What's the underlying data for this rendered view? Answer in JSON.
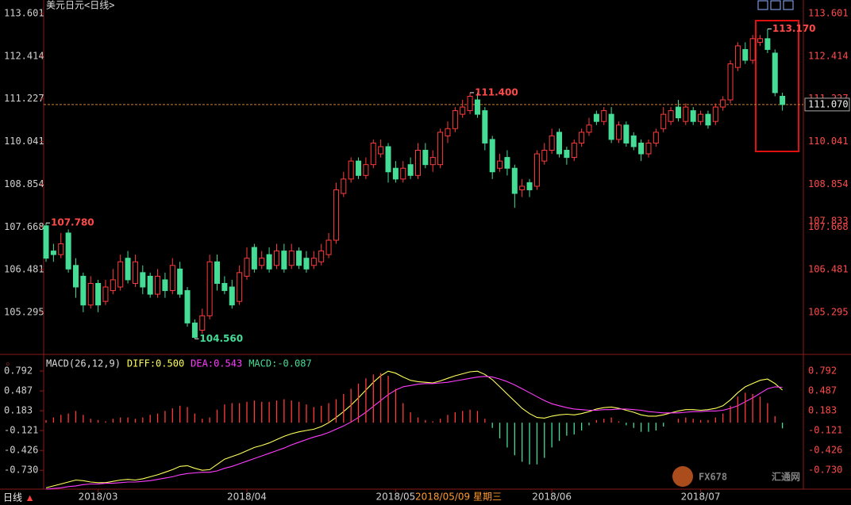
{
  "chart_data": {
    "type": "candlestick",
    "title": "美元日元<日线>",
    "price": {
      "ylim": [
        104.282,
        113.865
      ],
      "yticks": [
        113.601,
        112.414,
        111.227,
        110.041,
        108.854,
        107.668,
        106.481,
        105.295
      ],
      "extra_label": 107.833,
      "last_price": {
        "value": 111.07,
        "label": "111.070"
      },
      "up_color": "#ff3b3b",
      "down_color": "#45dc96",
      "open": [
        107.7,
        107.0,
        106.9,
        107.5,
        106.6,
        106.3,
        105.5,
        106.1,
        105.6,
        105.9,
        106.0,
        106.8,
        106.1,
        106.4,
        106.3,
        105.8,
        106.2,
        105.9,
        106.5,
        105.9,
        105.0,
        104.8,
        105.2,
        106.7,
        106.1,
        106.0,
        105.6,
        106.3,
        107.1,
        106.6,
        106.9,
        106.6,
        107.0,
        106.6,
        107.0,
        106.8,
        106.6,
        106.7,
        106.9,
        107.3,
        108.6,
        109.0,
        109.5,
        109.1,
        109.4,
        109.7,
        109.9,
        109.3,
        109.0,
        109.4,
        109.1,
        109.8,
        109.4,
        109.4,
        110.2,
        110.4,
        110.8,
        110.9,
        111.2,
        110.9,
        110.1,
        109.3,
        109.6,
        109.3,
        108.7,
        108.9,
        108.8,
        109.5,
        109.8,
        110.3,
        109.8,
        109.6,
        110.0,
        110.3,
        110.8,
        110.6,
        110.8,
        110.1,
        110.5,
        110.2,
        110.0,
        109.7,
        110.0,
        110.4,
        110.6,
        111.0,
        110.6,
        110.9,
        110.6,
        110.8,
        110.6,
        111.0,
        111.2,
        112.1,
        112.6,
        112.3,
        112.8,
        112.9,
        112.5,
        111.3
      ],
      "high": [
        107.78,
        107.2,
        107.5,
        107.6,
        106.8,
        106.4,
        106.3,
        106.2,
        106.2,
        106.5,
        106.9,
        107.0,
        106.9,
        106.6,
        106.4,
        106.5,
        106.4,
        106.8,
        106.7,
        106.0,
        105.1,
        105.4,
        106.9,
        106.9,
        106.3,
        106.2,
        106.6,
        107.1,
        107.2,
        107.0,
        107.1,
        107.2,
        107.2,
        107.2,
        107.1,
        107.0,
        107.0,
        107.2,
        107.5,
        108.9,
        109.2,
        109.6,
        109.6,
        109.6,
        110.1,
        110.1,
        110.0,
        109.5,
        109.5,
        109.6,
        110.0,
        110.0,
        109.8,
        110.4,
        110.6,
        111.0,
        111.2,
        111.4,
        111.4,
        111.0,
        110.2,
        109.7,
        109.8,
        109.4,
        109.0,
        109.0,
        109.8,
        110.0,
        110.4,
        110.4,
        109.9,
        110.1,
        110.4,
        110.7,
        110.9,
        111.0,
        111.0,
        110.6,
        110.6,
        110.3,
        110.1,
        110.1,
        110.4,
        111.0,
        111.0,
        111.2,
        111.1,
        111.0,
        110.9,
        110.9,
        111.1,
        111.3,
        112.3,
        112.8,
        112.8,
        113.0,
        113.0,
        113.17,
        112.6,
        111.4
      ],
      "low": [
        106.7,
        106.7,
        106.8,
        106.4,
        105.7,
        105.3,
        105.4,
        105.3,
        105.5,
        105.8,
        105.9,
        106.1,
        106.0,
        105.8,
        105.7,
        105.7,
        105.7,
        105.8,
        105.7,
        104.9,
        104.56,
        104.7,
        105.1,
        105.9,
        105.8,
        105.4,
        105.5,
        106.2,
        106.4,
        106.5,
        106.4,
        106.5,
        106.4,
        106.5,
        106.5,
        106.4,
        106.5,
        106.6,
        106.8,
        107.2,
        108.5,
        108.9,
        109.0,
        109.0,
        109.3,
        109.6,
        108.9,
        108.9,
        108.9,
        109.0,
        109.0,
        109.3,
        109.2,
        109.3,
        110.0,
        110.3,
        110.7,
        110.8,
        110.7,
        109.8,
        109.0,
        109.2,
        109.1,
        108.2,
        108.5,
        108.5,
        108.7,
        109.4,
        109.7,
        109.6,
        109.4,
        109.5,
        109.9,
        110.2,
        110.5,
        110.5,
        110.0,
        110.0,
        109.9,
        109.8,
        109.5,
        109.6,
        109.9,
        110.3,
        110.5,
        110.6,
        110.5,
        110.5,
        110.5,
        110.4,
        110.5,
        110.9,
        111.1,
        112.0,
        112.2,
        112.2,
        112.7,
        112.5,
        111.3,
        110.9
      ],
      "close": [
        106.8,
        106.9,
        107.2,
        106.5,
        106.0,
        105.5,
        106.1,
        105.5,
        106.0,
        106.2,
        106.7,
        106.2,
        106.7,
        106.0,
        105.8,
        106.3,
        105.9,
        106.6,
        105.8,
        105.0,
        104.6,
        105.2,
        106.7,
        106.1,
        105.9,
        105.5,
        106.4,
        106.8,
        106.5,
        106.8,
        106.5,
        107.0,
        106.5,
        107.0,
        106.6,
        106.5,
        106.8,
        107.0,
        107.3,
        108.7,
        109.0,
        109.5,
        109.1,
        109.4,
        110.0,
        109.9,
        109.2,
        109.0,
        109.3,
        109.1,
        109.8,
        109.4,
        109.6,
        110.3,
        110.4,
        110.9,
        111.0,
        111.3,
        110.8,
        110.0,
        109.2,
        109.5,
        109.3,
        108.6,
        108.8,
        108.7,
        109.7,
        109.8,
        110.2,
        109.7,
        109.6,
        110.0,
        110.3,
        110.5,
        110.6,
        110.9,
        110.1,
        110.5,
        110.0,
        109.9,
        109.7,
        110.0,
        110.3,
        110.8,
        110.9,
        110.7,
        111.0,
        110.6,
        110.8,
        110.5,
        111.0,
        111.2,
        112.2,
        112.7,
        112.3,
        112.9,
        112.9,
        112.6,
        111.4,
        111.07
      ],
      "annotations": [
        {
          "index": 0,
          "value": 107.78,
          "label": "107.780"
        },
        {
          "index": 20,
          "value": 104.56,
          "label": "104.560"
        },
        {
          "index": 57,
          "value": 111.4,
          "label": "111.400"
        },
        {
          "index": 97,
          "value": 113.17,
          "label": "113.170"
        }
      ]
    },
    "macd": {
      "legend": [
        "MACD(26,12,9)",
        "DIFF:0.500",
        "DEA:0.543",
        "MACD:-0.087"
      ],
      "ylim": [
        -1.056,
        0.987
      ],
      "yticks": [
        0.792,
        0.487,
        0.183,
        -0.121,
        -0.426,
        -0.73
      ],
      "ytick_labels": [
        "0.792",
        "0.487",
        "0.183",
        "-0.121",
        "-0.426",
        "-0.730"
      ],
      "series": [
        {
          "name": "DIFF",
          "color": "#ffff5a",
          "values": [
            -1.0,
            -0.97,
            -0.94,
            -0.91,
            -0.88,
            -0.89,
            -0.91,
            -0.92,
            -0.92,
            -0.9,
            -0.88,
            -0.87,
            -0.88,
            -0.86,
            -0.83,
            -0.8,
            -0.76,
            -0.72,
            -0.67,
            -0.66,
            -0.7,
            -0.73,
            -0.72,
            -0.64,
            -0.56,
            -0.52,
            -0.48,
            -0.43,
            -0.38,
            -0.35,
            -0.31,
            -0.26,
            -0.21,
            -0.17,
            -0.14,
            -0.12,
            -0.1,
            -0.06,
            0.0,
            0.08,
            0.17,
            0.27,
            0.38,
            0.5,
            0.62,
            0.72,
            0.79,
            0.76,
            0.7,
            0.65,
            0.63,
            0.62,
            0.61,
            0.64,
            0.68,
            0.72,
            0.75,
            0.78,
            0.79,
            0.74,
            0.66,
            0.55,
            0.44,
            0.33,
            0.22,
            0.14,
            0.08,
            0.07,
            0.1,
            0.12,
            0.13,
            0.12,
            0.14,
            0.17,
            0.21,
            0.23,
            0.24,
            0.22,
            0.19,
            0.16,
            0.12,
            0.1,
            0.1,
            0.12,
            0.15,
            0.18,
            0.2,
            0.2,
            0.19,
            0.2,
            0.22,
            0.26,
            0.35,
            0.46,
            0.55,
            0.6,
            0.65,
            0.67,
            0.6,
            0.5
          ]
        },
        {
          "name": "DEA",
          "color": "#ff3cff",
          "values": [
            -1.02,
            -1.01,
            -1.0,
            -0.98,
            -0.97,
            -0.95,
            -0.94,
            -0.94,
            -0.93,
            -0.93,
            -0.92,
            -0.91,
            -0.91,
            -0.9,
            -0.89,
            -0.87,
            -0.85,
            -0.83,
            -0.8,
            -0.78,
            -0.77,
            -0.76,
            -0.76,
            -0.74,
            -0.7,
            -0.67,
            -0.63,
            -0.59,
            -0.55,
            -0.51,
            -0.47,
            -0.43,
            -0.39,
            -0.34,
            -0.3,
            -0.26,
            -0.22,
            -0.19,
            -0.15,
            -0.1,
            -0.05,
            0.01,
            0.08,
            0.16,
            0.25,
            0.34,
            0.43,
            0.5,
            0.55,
            0.57,
            0.59,
            0.6,
            0.6,
            0.61,
            0.62,
            0.64,
            0.66,
            0.68,
            0.7,
            0.71,
            0.7,
            0.67,
            0.63,
            0.58,
            0.52,
            0.46,
            0.4,
            0.34,
            0.29,
            0.26,
            0.23,
            0.21,
            0.2,
            0.19,
            0.19,
            0.2,
            0.2,
            0.21,
            0.21,
            0.2,
            0.19,
            0.17,
            0.16,
            0.15,
            0.15,
            0.15,
            0.16,
            0.17,
            0.17,
            0.18,
            0.18,
            0.19,
            0.22,
            0.26,
            0.32,
            0.38,
            0.45,
            0.52,
            0.55,
            0.543
          ]
        },
        {
          "name": "MACD",
          "up_color": "#ff3b3b",
          "down_color": "#45dc96",
          "values": [
            0.04,
            0.08,
            0.12,
            0.14,
            0.18,
            0.12,
            0.06,
            0.04,
            0.02,
            0.06,
            0.08,
            0.08,
            0.06,
            0.08,
            0.12,
            0.14,
            0.18,
            0.22,
            0.26,
            0.24,
            0.14,
            0.06,
            0.08,
            0.2,
            0.28,
            0.3,
            0.3,
            0.32,
            0.34,
            0.32,
            0.32,
            0.34,
            0.36,
            0.34,
            0.32,
            0.28,
            0.24,
            0.26,
            0.3,
            0.36,
            0.44,
            0.52,
            0.6,
            0.68,
            0.74,
            0.76,
            0.72,
            0.52,
            0.3,
            0.16,
            0.08,
            0.04,
            0.02,
            0.06,
            0.12,
            0.16,
            0.18,
            0.2,
            0.18,
            0.06,
            -0.08,
            -0.24,
            -0.38,
            -0.5,
            -0.6,
            -0.64,
            -0.64,
            -0.54,
            -0.38,
            -0.28,
            -0.2,
            -0.18,
            -0.12,
            -0.04,
            0.04,
            0.06,
            0.08,
            0.02,
            -0.04,
            -0.08,
            -0.14,
            -0.14,
            -0.12,
            -0.06,
            0.0,
            0.06,
            0.08,
            0.06,
            0.04,
            0.04,
            0.08,
            0.14,
            0.26,
            0.4,
            0.46,
            0.44,
            0.4,
            0.3,
            0.1,
            -0.087
          ]
        }
      ]
    },
    "xticks": [
      {
        "value": 7,
        "label": "2018/03"
      },
      {
        "value": 27,
        "label": "2018/04"
      },
      {
        "value": 47,
        "label": "2018/05"
      },
      {
        "value": 68,
        "label": "2018/06"
      },
      {
        "value": 88,
        "label": "2018/07"
      }
    ],
    "cursor_label": "2018/05/09 星期三",
    "period_button": "日线",
    "watermark": [
      "FX678",
      "汇通网"
    ]
  }
}
